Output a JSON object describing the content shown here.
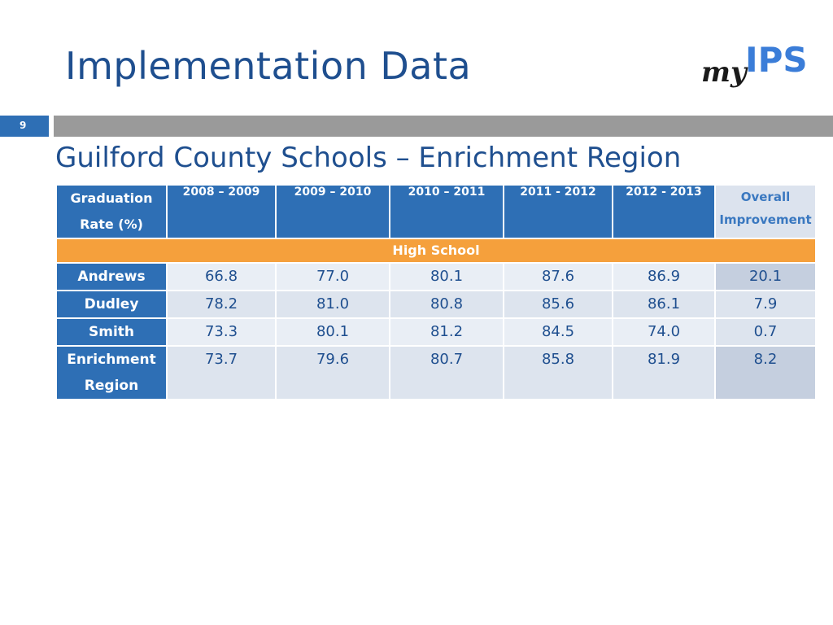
{
  "slide": {
    "title": "Implementation Data",
    "page_number": "9",
    "subtitle": "Guilford County Schools – Enrichment Region",
    "logo_text_my": "my",
    "logo_text_ips": "IPS"
  },
  "table": {
    "header_label_line1": "Graduation",
    "header_label_line2": "Rate (%)",
    "columns": [
      "2008 – 2009",
      "2009 – 2010",
      "2010 – 2011",
      "2011 - 2012",
      "2012 - 2013"
    ],
    "overall_line1": "Overall",
    "overall_line2": "Improvement",
    "section": "High School",
    "rows": [
      {
        "name_line1": "Andrews",
        "name_line2": "",
        "values": [
          "66.8",
          "77.0",
          "80.1",
          "87.6",
          "86.9"
        ],
        "overall": "20.1"
      },
      {
        "name_line1": "Dudley",
        "name_line2": "",
        "values": [
          "78.2",
          "81.0",
          "80.8",
          "85.6",
          "86.1"
        ],
        "overall": "7.9"
      },
      {
        "name_line1": "Smith",
        "name_line2": "",
        "values": [
          "73.3",
          "80.1",
          "81.2",
          "84.5",
          "74.0"
        ],
        "overall": "0.7"
      },
      {
        "name_line1": "Enrichment",
        "name_line2": "Region",
        "values": [
          "73.7",
          "79.6",
          "80.7",
          "85.8",
          "81.9"
        ],
        "overall": "8.2"
      }
    ]
  },
  "colors": {
    "title": "#1f4f8f",
    "header_blue": "#2e6fb5",
    "section_orange": "#f5a03c",
    "divider_gray": "#9a9a9a"
  }
}
